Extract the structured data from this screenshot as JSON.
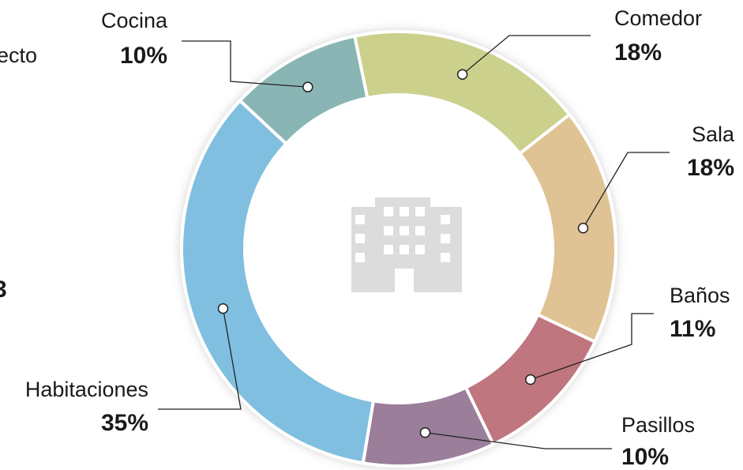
{
  "chart_data": {
    "type": "donut",
    "categories": [
      "Cocina",
      "Comedor",
      "Sala",
      "Baños",
      "Pasillos",
      "Habitaciones"
    ],
    "values": [
      10,
      18,
      18,
      11,
      10,
      35
    ],
    "value_labels": [
      "10%",
      "18%",
      "18%",
      "11%",
      "10%",
      "35%"
    ],
    "colors": [
      "#8ab5b5",
      "#cbd08c",
      "#e0c394",
      "#c0767e",
      "#9a7e9a",
      "#80bfdf"
    ],
    "annotations": [
      "ecto",
      "3"
    ]
  }
}
